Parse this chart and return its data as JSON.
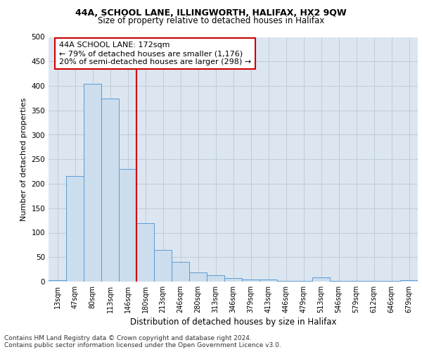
{
  "title1": "44A, SCHOOL LANE, ILLINGWORTH, HALIFAX, HX2 9QW",
  "title2": "Size of property relative to detached houses in Halifax",
  "xlabel": "Distribution of detached houses by size in Halifax",
  "ylabel": "Number of detached properties",
  "categories": [
    "13sqm",
    "47sqm",
    "80sqm",
    "113sqm",
    "146sqm",
    "180sqm",
    "213sqm",
    "246sqm",
    "280sqm",
    "313sqm",
    "346sqm",
    "379sqm",
    "413sqm",
    "446sqm",
    "479sqm",
    "513sqm",
    "546sqm",
    "579sqm",
    "612sqm",
    "646sqm",
    "679sqm"
  ],
  "values": [
    3,
    216,
    404,
    374,
    230,
    120,
    65,
    40,
    18,
    13,
    7,
    4,
    4,
    1,
    1,
    8,
    1,
    1,
    1,
    1,
    3
  ],
  "bar_color": "#ccdded",
  "bar_edge_color": "#5b9bd5",
  "vline_color": "#cc0000",
  "vline_x_index": 4.5,
  "annotation_line1": "44A SCHOOL LANE: 172sqm",
  "annotation_line2": "← 79% of detached houses are smaller (1,176)",
  "annotation_line3": "20% of semi-detached houses are larger (298) →",
  "annotation_box_color": "#ffffff",
  "annotation_box_edge": "#cc0000",
  "footnote": "Contains HM Land Registry data © Crown copyright and database right 2024.\nContains public sector information licensed under the Open Government Licence v3.0.",
  "ylim": [
    0,
    500
  ],
  "yticks": [
    0,
    50,
    100,
    150,
    200,
    250,
    300,
    350,
    400,
    450,
    500
  ],
  "grid_color": "#c0ccd8",
  "bg_color": "#dce6f0",
  "title1_fontsize": 9,
  "title2_fontsize": 8.5,
  "xlabel_fontsize": 8.5,
  "ylabel_fontsize": 8,
  "tick_fontsize": 7,
  "annotation_fontsize": 8,
  "footnote_fontsize": 6.5
}
